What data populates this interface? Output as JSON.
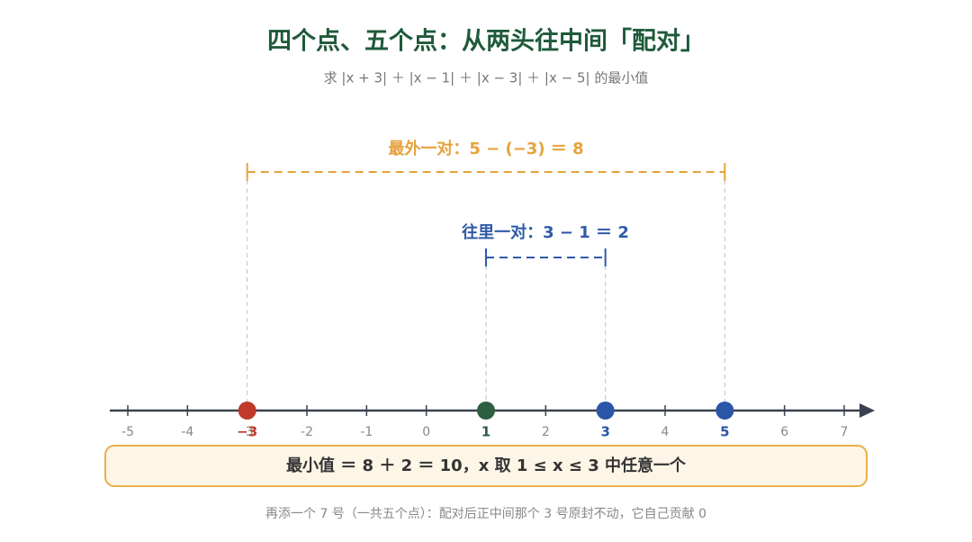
{
  "title": "四个点、五个点：从两头往中间「配对」",
  "subtitle": "求 |x + 3| ＋ |x − 1| ＋ |x − 3| ＋ |x − 5| 的最小值",
  "outer_pair": {
    "label": "最外一对：5 − (−3) ＝ 8",
    "color": "#e6a23c"
  },
  "inner_pair": {
    "label": "往里一对：3 − 1 ＝ 2",
    "color": "#2f5aa8"
  },
  "number_line": {
    "ticks": [
      -5,
      -4,
      -3,
      -2,
      -1,
      0,
      1,
      2,
      3,
      4,
      5,
      6,
      7
    ],
    "points": [
      {
        "value": -3,
        "label": "−3",
        "color": "#c0392b"
      },
      {
        "value": 1,
        "color": "#2d5e40"
      },
      {
        "value": 3,
        "color": "#2a56a8"
      },
      {
        "value": 5,
        "color": "#2a56a8"
      }
    ]
  },
  "result": "最小值 ＝ 8 ＋ 2 ＝ 10，x 取 1 ≤ x ≤ 3 中任意一个",
  "note": "再添一个 7 号（一共五个点）：配对后正中间那个 3 号原封不动，它自己贡献 0"
}
